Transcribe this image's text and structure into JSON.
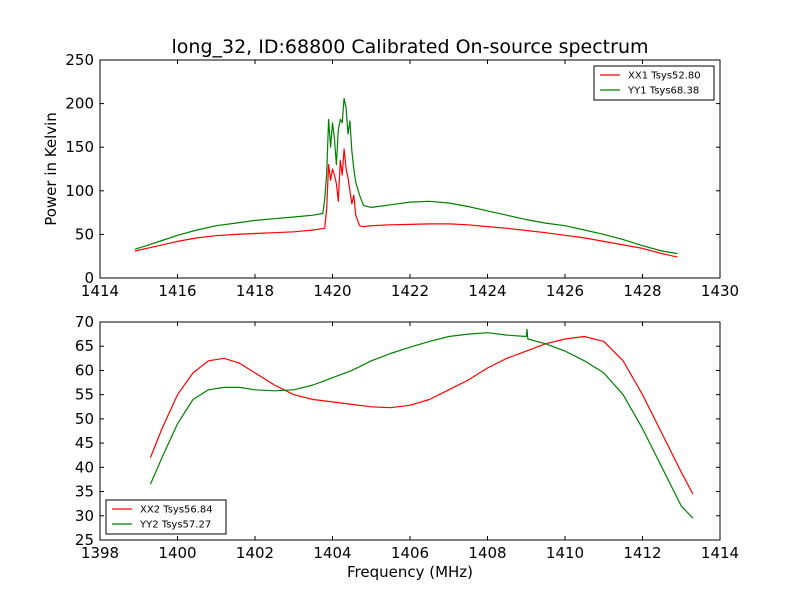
{
  "figure": {
    "title": "long_32, ID:68800 Calibrated On-source spectrum",
    "xlabel": "Frequency (MHz)",
    "colors": {
      "XX": "#ff0000",
      "YY": "#008000"
    }
  },
  "chart_data": [
    {
      "type": "line",
      "title": "long_32, ID:68800 Calibrated On-source spectrum",
      "xlabel": "",
      "ylabel": "Power in Kelvin",
      "xlim": [
        1414,
        1430
      ],
      "ylim": [
        0,
        250
      ],
      "xticks": [
        "1414",
        "1416",
        "1418",
        "1420",
        "1422",
        "1424",
        "1426",
        "1428",
        "1430"
      ],
      "yticks": [
        "0",
        "50",
        "100",
        "150",
        "200",
        "250"
      ],
      "grid": false,
      "legend": "top-right",
      "series": [
        {
          "name": "XX1 Tsys52.80",
          "color": "#ff0000",
          "x": [
            1414.9,
            1415.2,
            1415.6,
            1416.0,
            1416.5,
            1417.0,
            1417.5,
            1418.0,
            1418.5,
            1419.0,
            1419.5,
            1419.8,
            1419.85,
            1419.9,
            1419.95,
            1420.0,
            1420.05,
            1420.1,
            1420.15,
            1420.2,
            1420.25,
            1420.3,
            1420.35,
            1420.4,
            1420.45,
            1420.5,
            1420.55,
            1420.6,
            1420.7,
            1420.8,
            1421.0,
            1421.5,
            1422.0,
            1422.5,
            1423.0,
            1423.5,
            1424.0,
            1424.5,
            1425.0,
            1425.5,
            1426.0,
            1426.5,
            1427.0,
            1427.5,
            1428.0,
            1428.5,
            1428.9
          ],
          "values": [
            31,
            34,
            38,
            42,
            46,
            48.5,
            50,
            51,
            52,
            53,
            55,
            57,
            80,
            130,
            112,
            125,
            118,
            108,
            88,
            135,
            118,
            148,
            125,
            115,
            100,
            85,
            95,
            72,
            60,
            59,
            60,
            61,
            61.5,
            62,
            62,
            61,
            59,
            57,
            54.5,
            52,
            49,
            46,
            42,
            38,
            34,
            28,
            24
          ]
        },
        {
          "name": "YY1 Tsys68.38",
          "color": "#008000",
          "x": [
            1414.9,
            1415.2,
            1415.6,
            1416.0,
            1416.5,
            1417.0,
            1417.5,
            1418.0,
            1418.5,
            1419.0,
            1419.5,
            1419.75,
            1419.8,
            1419.85,
            1419.9,
            1419.95,
            1420.0,
            1420.05,
            1420.1,
            1420.15,
            1420.2,
            1420.25,
            1420.3,
            1420.35,
            1420.4,
            1420.45,
            1420.5,
            1420.55,
            1420.6,
            1420.7,
            1420.8,
            1421.0,
            1421.5,
            1422.0,
            1422.5,
            1423.0,
            1423.5,
            1424.0,
            1424.5,
            1425.0,
            1425.5,
            1426.0,
            1426.5,
            1427.0,
            1427.5,
            1428.0,
            1428.5,
            1428.9
          ],
          "values": [
            33,
            37,
            43,
            49,
            55,
            60,
            63,
            66,
            68,
            70,
            72,
            74,
            90,
            120,
            182,
            150,
            178,
            160,
            130,
            170,
            182,
            178,
            206,
            195,
            165,
            180,
            145,
            125,
            110,
            95,
            83,
            81,
            84,
            87,
            88,
            86,
            82,
            77,
            72,
            67,
            63,
            60,
            55,
            50,
            44,
            37,
            31,
            28
          ]
        }
      ]
    },
    {
      "type": "line",
      "title": "",
      "xlabel": "Frequency (MHz)",
      "ylabel": "",
      "xlim": [
        1398,
        1414
      ],
      "ylim": [
        25,
        70
      ],
      "xticks": [
        "1398",
        "1400",
        "1402",
        "1404",
        "1406",
        "1408",
        "1410",
        "1412",
        "1414"
      ],
      "yticks": [
        "25",
        "30",
        "35",
        "40",
        "45",
        "50",
        "55",
        "60",
        "65",
        "70"
      ],
      "grid": false,
      "legend": "bottom-left",
      "series": [
        {
          "name": "XX2 Tsys56.84",
          "color": "#ff0000",
          "x": [
            1399.3,
            1399.6,
            1400.0,
            1400.4,
            1400.8,
            1401.2,
            1401.6,
            1402.0,
            1402.5,
            1403.0,
            1403.5,
            1404.0,
            1404.5,
            1405.0,
            1405.5,
            1406.0,
            1406.5,
            1407.0,
            1407.5,
            1408.0,
            1408.5,
            1409.0,
            1409.5,
            1410.0,
            1410.5,
            1411.0,
            1411.5,
            1412.0,
            1412.5,
            1413.0,
            1413.3
          ],
          "values": [
            42,
            48,
            55,
            59.5,
            62,
            62.5,
            61.5,
            59.5,
            57,
            55,
            54,
            53.5,
            53,
            52.5,
            52.3,
            52.8,
            54,
            56,
            58,
            60.5,
            62.5,
            64,
            65.5,
            66.5,
            67,
            66,
            62,
            55,
            47,
            39,
            34.5
          ]
        },
        {
          "name": "YY2 Tsys57.27",
          "color": "#008000",
          "x": [
            1399.3,
            1399.6,
            1400.0,
            1400.4,
            1400.8,
            1401.2,
            1401.6,
            1402.0,
            1402.5,
            1403.0,
            1403.5,
            1404.0,
            1404.5,
            1405.0,
            1405.5,
            1406.0,
            1406.5,
            1407.0,
            1407.5,
            1408.0,
            1408.5,
            1409.0,
            1409.02,
            1409.04,
            1409.5,
            1410.0,
            1410.5,
            1411.0,
            1411.5,
            1412.0,
            1412.5,
            1413.0,
            1413.3
          ],
          "values": [
            36.5,
            42,
            49,
            54,
            56,
            56.5,
            56.5,
            56,
            55.8,
            56,
            57,
            58.5,
            60,
            62,
            63.5,
            64.8,
            66,
            67,
            67.5,
            67.8,
            67.3,
            67,
            68.5,
            66.5,
            65.5,
            64,
            62,
            59.5,
            55,
            48,
            40,
            32,
            29.5
          ]
        }
      ]
    }
  ]
}
